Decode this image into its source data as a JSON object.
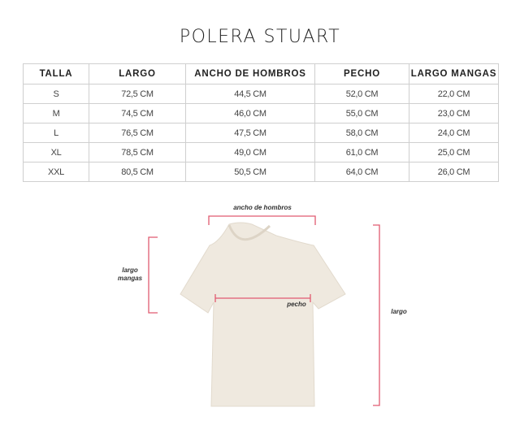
{
  "title": "POLERA STUART",
  "table": {
    "headers": [
      "TALLA",
      "LARGO",
      "ANCHO DE HOMBROS",
      "PECHO",
      "LARGO MANGAS"
    ],
    "rows": [
      [
        "S",
        "72,5 CM",
        "44,5 CM",
        "52,0 CM",
        "22,0 CM"
      ],
      [
        "M",
        "74,5 CM",
        "46,0 CM",
        "55,0 CM",
        "23,0 CM"
      ],
      [
        "L",
        "76,5 CM",
        "47,5 CM",
        "58,0 CM",
        "24,0 CM"
      ],
      [
        "XL",
        "78,5 CM",
        "49,0 CM",
        "61,0 CM",
        "25,0 CM"
      ],
      [
        "XXL",
        "80,5 CM",
        "50,5 CM",
        "64,0 CM",
        "26,0 CM"
      ]
    ]
  },
  "diagram": {
    "labels": {
      "shoulders": "ancho de hombros",
      "sleeve_1": "largo",
      "sleeve_2": "mangas",
      "chest": "pecho",
      "length": "largo"
    },
    "colors": {
      "shirt": "#efe9df",
      "measure": "#e05a70"
    }
  }
}
